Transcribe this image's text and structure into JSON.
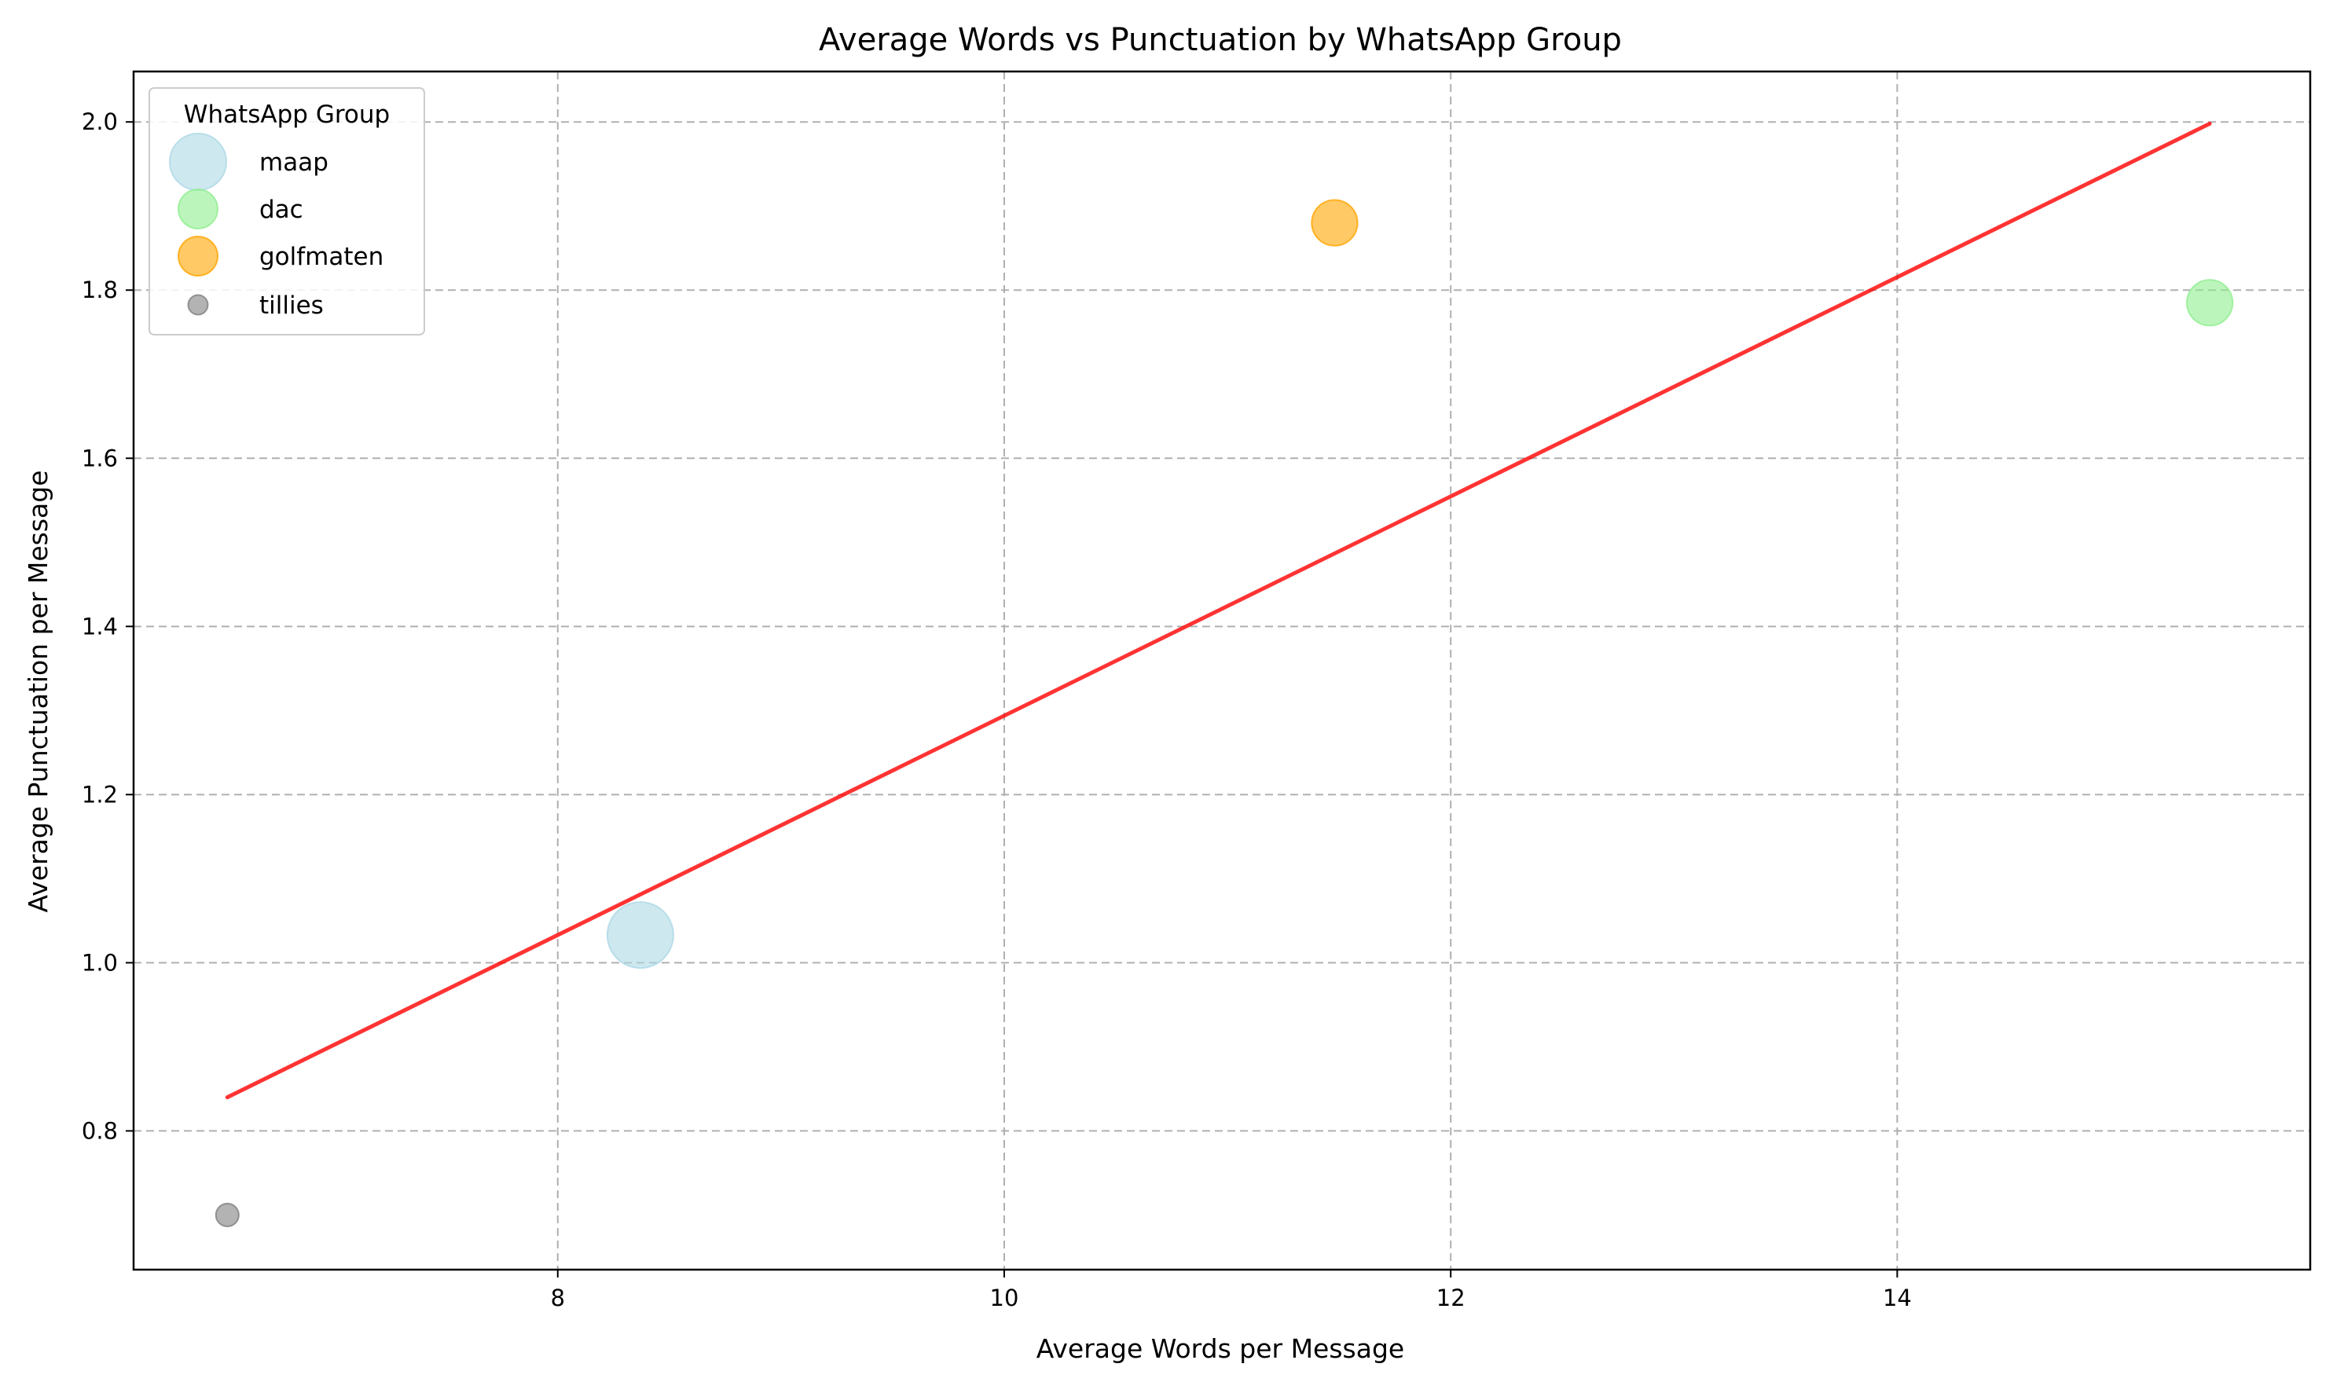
{
  "chart_data": {
    "type": "scatter",
    "title": "Average Words vs Punctuation by WhatsApp Group",
    "xlabel": "Average Words per Message",
    "ylabel": "Average Punctuation per Message",
    "xlim": [
      6.1,
      15.85
    ],
    "ylim": [
      0.635,
      2.06
    ],
    "x_ticks": [
      8,
      10,
      12,
      14
    ],
    "x_tick_labels": [
      "8",
      "10",
      "12",
      "14"
    ],
    "y_ticks": [
      0.8,
      1.0,
      1.2,
      1.4,
      1.6,
      1.8,
      2.0
    ],
    "y_tick_labels": [
      "0.8",
      "1.0",
      "1.2",
      "1.4",
      "1.6",
      "1.8",
      "2.0"
    ],
    "grid": true,
    "legend": {
      "title": "WhatsApp Group",
      "position": "top-left"
    },
    "series": [
      {
        "name": "maap",
        "x": 8.37,
        "y": 1.033,
        "size": 100,
        "color": "#add8e6"
      },
      {
        "name": "dac",
        "x": 15.4,
        "y": 1.785,
        "size": 48,
        "color": "#90ee90"
      },
      {
        "name": "golfmaten",
        "x": 11.48,
        "y": 1.88,
        "size": 48,
        "color": "#ffa500"
      },
      {
        "name": "tillies",
        "x": 6.52,
        "y": 0.7,
        "size": 12,
        "color": "#808080"
      }
    ],
    "trend_line": {
      "color": "#ff0000",
      "points": [
        [
          6.52,
          0.84
        ],
        [
          15.4,
          1.998
        ]
      ]
    }
  }
}
